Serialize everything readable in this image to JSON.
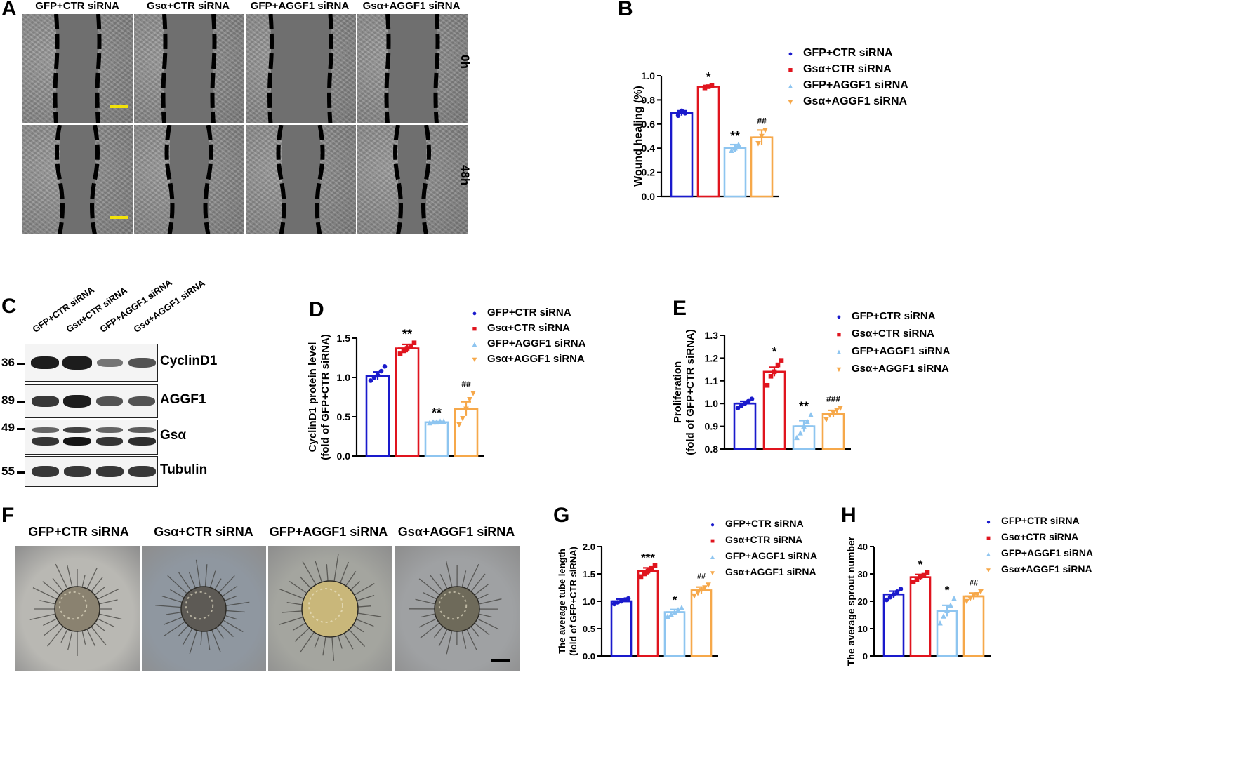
{
  "panels": {
    "A": {
      "label": "A",
      "columns": [
        "GFP+CTR siRNA",
        "Gsα+CTR siRNA",
        "GFP+AGGF1 siRNA",
        "Gsα+AGGF1 siRNA"
      ],
      "rows": [
        "0h",
        "48h"
      ]
    },
    "B": {
      "label": "B"
    },
    "C": {
      "label": "C",
      "lanes": [
        "GFP+CTR siRNA",
        "Gsα+CTR siRNA",
        "GFP+AGGF1 siRNA",
        "Gsα+AGGF1 siRNA"
      ],
      "blots": [
        {
          "mw": "36",
          "name": "CyclinD1"
        },
        {
          "mw": "89",
          "name": "AGGF1"
        },
        {
          "mw": "49",
          "name": "Gsα"
        },
        {
          "mw": "55",
          "name": "Tubulin"
        }
      ]
    },
    "D": {
      "label": "D"
    },
    "E": {
      "label": "E"
    },
    "F": {
      "label": "F",
      "columns": [
        "GFP+CTR siRNA",
        "Gsα+CTR siRNA",
        "GFP+AGGF1 siRNA",
        "Gsα+AGGF1 siRNA"
      ]
    },
    "G": {
      "label": "G"
    },
    "H": {
      "label": "H"
    }
  },
  "legend_names": [
    "GFP+CTR siRNA",
    "Gsα+CTR siRNA",
    "GFP+AGGF1 siRNA",
    "Gsα+AGGF1 siRNA"
  ],
  "legend_markers": [
    "●",
    "■",
    "▲",
    "▼"
  ],
  "colors": [
    "#1a1acc",
    "#e0141e",
    "#8ec5f0",
    "#f6a84a"
  ],
  "chart_data": [
    {
      "id": "B",
      "type": "bar",
      "categories": [
        "GFP+CTR siRNA",
        "Gsα+CTR siRNA",
        "GFP+AGGF1 siRNA",
        "Gsα+AGGF1 siRNA"
      ],
      "values": [
        0.69,
        0.91,
        0.4,
        0.49
      ],
      "errors": [
        0.02,
        0.01,
        0.03,
        0.06
      ],
      "points": [
        [
          0.67,
          0.71,
          0.69
        ],
        [
          0.9,
          0.91,
          0.92
        ],
        [
          0.38,
          0.4,
          0.43
        ],
        [
          0.44,
          0.5,
          0.55
        ]
      ],
      "annotations": [
        "",
        "*",
        "**",
        "##"
      ],
      "ylabel": "Wound healing (%)",
      "ylim": [
        0.0,
        1.0
      ],
      "yticks": [
        "0.0",
        "0.2",
        "0.4",
        "0.6",
        "0.8",
        "1.0"
      ],
      "legend": "top-right"
    },
    {
      "id": "D",
      "type": "bar",
      "categories": [
        "GFP+CTR siRNA",
        "Gsα+CTR siRNA",
        "GFP+AGGF1 siRNA",
        "Gsα+AGGF1 siRNA"
      ],
      "values": [
        1.02,
        1.37,
        0.43,
        0.6
      ],
      "errors": [
        0.05,
        0.05,
        0.01,
        0.09
      ],
      "points": [
        [
          0.96,
          1.0,
          1.03,
          1.08,
          1.14
        ],
        [
          1.3,
          1.34,
          1.37,
          1.4,
          1.44
        ],
        [
          0.42,
          0.43,
          0.43,
          0.44,
          0.44
        ],
        [
          0.4,
          0.48,
          0.6,
          0.72,
          0.8
        ]
      ],
      "annotations": [
        "",
        "**",
        "**",
        "##"
      ],
      "ylabel": "CyclinD1 protein level (fold of GFP+CTR siRNA)",
      "ylim": [
        0.0,
        1.5
      ],
      "yticks": [
        "0.0",
        "0.5",
        "1.0",
        "1.5"
      ],
      "legend": "top-right"
    },
    {
      "id": "E",
      "type": "bar",
      "categories": [
        "GFP+CTR siRNA",
        "Gsα+CTR siRNA",
        "GFP+AGGF1 siRNA",
        "Gsα+AGGF1 siRNA"
      ],
      "values": [
        1.0,
        1.14,
        0.9,
        0.955
      ],
      "errors": [
        0.01,
        0.02,
        0.025,
        0.015
      ],
      "points": [
        [
          0.98,
          0.99,
          1.0,
          1.01,
          1.02
        ],
        [
          1.08,
          1.12,
          1.14,
          1.17,
          1.19
        ],
        [
          0.85,
          0.87,
          0.9,
          0.92,
          0.95
        ],
        [
          0.93,
          0.95,
          0.96,
          0.97,
          0.98
        ]
      ],
      "annotations": [
        "",
        "*",
        "**",
        "###"
      ],
      "ylabel": "Proliferation (fold of GFP+CTR siRNA)",
      "ylim": [
        0.8,
        1.3
      ],
      "yticks": [
        "0.8",
        "0.9",
        "1.0",
        "1.1",
        "1.2",
        "1.3"
      ],
      "legend": "top-right"
    },
    {
      "id": "G",
      "type": "bar",
      "categories": [
        "GFP+CTR siRNA",
        "Gsα+CTR siRNA",
        "GFP+AGGF1 siRNA",
        "Gsα+AGGF1 siRNA"
      ],
      "values": [
        1.0,
        1.55,
        0.8,
        1.2
      ],
      "errors": [
        0.04,
        0.06,
        0.05,
        0.06
      ],
      "points": [
        [
          0.95,
          0.98,
          1.0,
          1.03,
          1.05
        ],
        [
          1.45,
          1.5,
          1.55,
          1.6,
          1.65
        ],
        [
          0.72,
          0.76,
          0.8,
          0.84,
          0.88
        ],
        [
          1.1,
          1.15,
          1.2,
          1.25,
          1.3
        ]
      ],
      "annotations": [
        "",
        "***",
        "*",
        "##"
      ],
      "ylabel": "The average tube length (fold of GFP+CTR siRNA)",
      "ylim": [
        0.0,
        2.0
      ],
      "yticks": [
        "0.0",
        "0.5",
        "1.0",
        "1.5",
        "2.0"
      ],
      "legend": "top-right"
    },
    {
      "id": "H",
      "type": "bar",
      "categories": [
        "GFP+CTR siRNA",
        "Gsα+CTR siRNA",
        "GFP+AGGF1 siRNA",
        "Gsα+AGGF1 siRNA"
      ],
      "values": [
        22.5,
        28.8,
        16.5,
        21.8
      ],
      "errors": [
        1.2,
        1.0,
        2.0,
        1.2
      ],
      "points": [
        [
          20.5,
          21.5,
          22.5,
          23.5,
          24.5
        ],
        [
          27.0,
          28.0,
          29.0,
          29.5,
          30.5
        ],
        [
          12.0,
          14.5,
          16.5,
          18.5,
          21.0
        ],
        [
          20.0,
          21.0,
          22.0,
          22.5,
          23.5
        ]
      ],
      "annotations": [
        "",
        "*",
        "*",
        "##"
      ],
      "ylabel": "The average sprout number",
      "ylim": [
        0,
        40
      ],
      "yticks": [
        "0",
        "10",
        "20",
        "30",
        "40"
      ],
      "legend": "top-right"
    }
  ]
}
